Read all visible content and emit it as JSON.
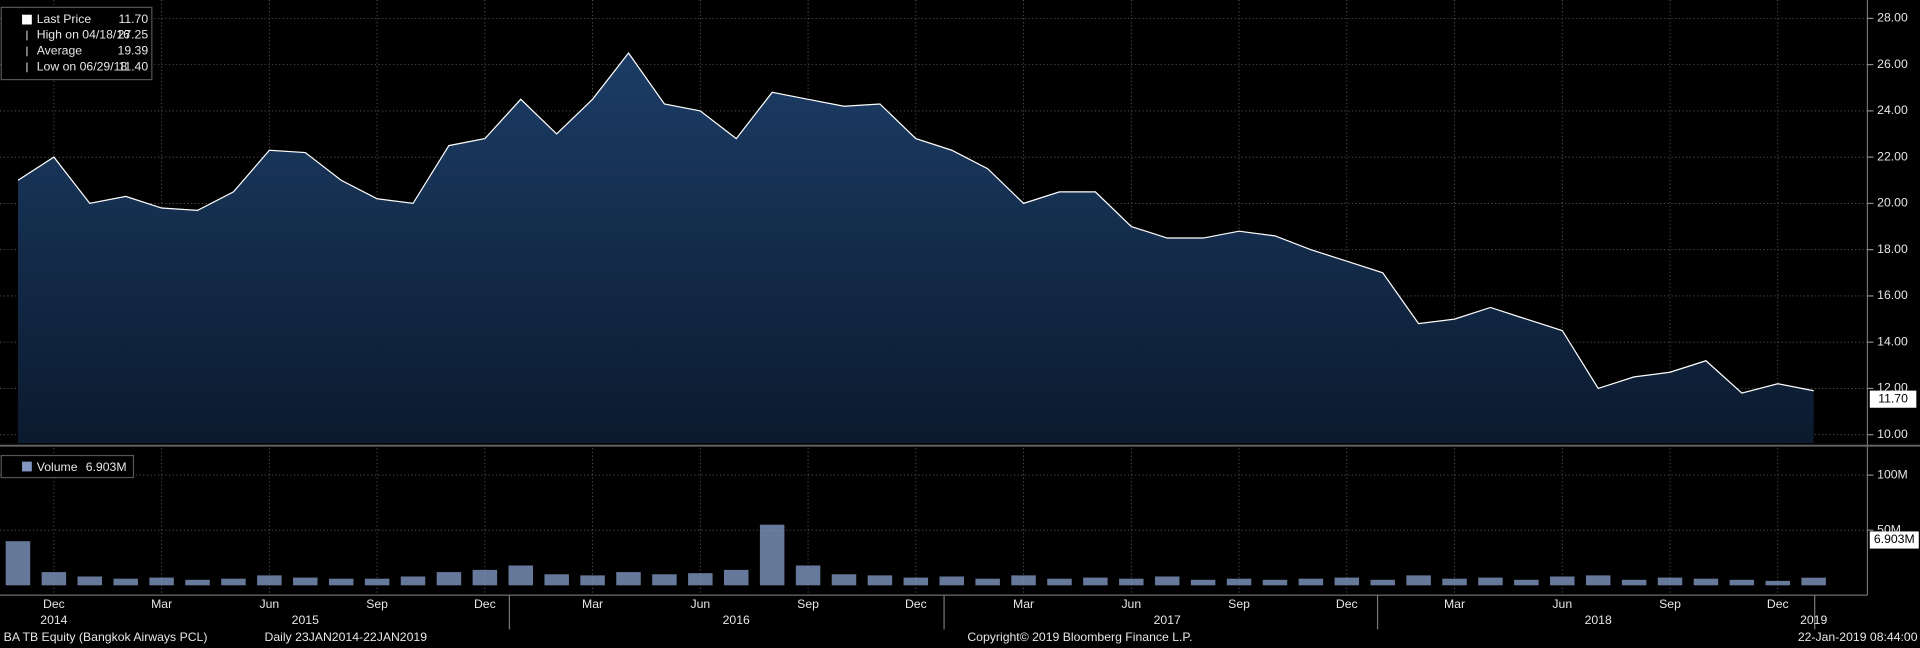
{
  "chart_data": {
    "type": "area",
    "title": "BA TB Equity (Bangkok Airways PCL)",
    "subtitle": "Daily 23JAN2014-22JAN2019",
    "copyright": "Copyright© 2019 Bloomberg Finance L.P.",
    "timestamp": "22-Jan-2019 08:44:00",
    "legend": [
      {
        "name": "Last Price",
        "value": "11.70"
      },
      {
        "name": "High on 04/18/16",
        "value": "27.25"
      },
      {
        "name": "Average",
        "value": "19.39"
      },
      {
        "name": "Low on 06/29/18",
        "value": "11.40"
      }
    ],
    "last_price_label": "11.70",
    "x": [
      "2014-11",
      "2014-12",
      "2015-01",
      "2015-02",
      "2015-03",
      "2015-04",
      "2015-05",
      "2015-06",
      "2015-07",
      "2015-08",
      "2015-09",
      "2015-10",
      "2015-11",
      "2015-12",
      "2016-01",
      "2016-02",
      "2016-03",
      "2016-04",
      "2016-05",
      "2016-06",
      "2016-07",
      "2016-08",
      "2016-09",
      "2016-10",
      "2016-11",
      "2016-12",
      "2017-01",
      "2017-02",
      "2017-03",
      "2017-04",
      "2017-05",
      "2017-06",
      "2017-07",
      "2017-08",
      "2017-09",
      "2017-10",
      "2017-11",
      "2017-12",
      "2018-01",
      "2018-02",
      "2018-03",
      "2018-04",
      "2018-05",
      "2018-06",
      "2018-07",
      "2018-08",
      "2018-09",
      "2018-10",
      "2018-11",
      "2018-12",
      "2019-01"
    ],
    "series": [
      {
        "name": "Last Price",
        "color": "#ffffff",
        "values": [
          21.0,
          22.0,
          20.0,
          20.3,
          19.8,
          19.7,
          20.5,
          22.3,
          22.2,
          21.0,
          20.2,
          20.0,
          22.5,
          22.8,
          24.5,
          23.0,
          24.5,
          26.5,
          24.3,
          24.0,
          22.8,
          24.8,
          24.5,
          24.2,
          24.3,
          22.8,
          22.3,
          21.5,
          20.0,
          20.5,
          20.5,
          19.0,
          18.5,
          18.5,
          18.8,
          18.6,
          18.0,
          17.5,
          17.0,
          14.8,
          15.0,
          15.5,
          15.0,
          14.5,
          12.0,
          12.5,
          12.7,
          13.2,
          11.8,
          12.2,
          11.9
        ]
      }
    ],
    "ylim": [
      9,
      28.5
    ],
    "yticks": [
      {
        "value": 10,
        "label": "10.00"
      },
      {
        "value": 12,
        "label": "12.00"
      },
      {
        "value": 14,
        "label": "14.00"
      },
      {
        "value": 16,
        "label": "16.00"
      },
      {
        "value": 18,
        "label": "18.00"
      },
      {
        "value": 20,
        "label": "20.00"
      },
      {
        "value": 22,
        "label": "22.00"
      },
      {
        "value": 24,
        "label": "24.00"
      },
      {
        "value": 26,
        "label": "26.00"
      },
      {
        "value": 28,
        "label": "28.00"
      }
    ],
    "volume": {
      "name": "Volume",
      "legend_value": "6.903M",
      "last_label": "6.903M",
      "color": "#8197c0",
      "values": [
        40000000,
        12000000,
        8000000,
        6000000,
        7000000,
        5000000,
        6000000,
        9000000,
        7000000,
        6000000,
        6000000,
        8000000,
        12000000,
        14000000,
        18000000,
        10000000,
        9000000,
        12000000,
        10000000,
        11000000,
        14000000,
        55000000,
        18000000,
        10000000,
        9000000,
        7000000,
        8000000,
        6000000,
        9000000,
        6000000,
        7000000,
        6000000,
        8000000,
        5000000,
        6000000,
        5000000,
        6000000,
        7000000,
        5000000,
        9000000,
        6000000,
        7000000,
        5000000,
        8000000,
        9000000,
        5000000,
        7000000,
        6000000,
        5000000,
        4000000,
        6903000
      ],
      "ylim": [
        0,
        110000000
      ],
      "yticks": [
        {
          "value": 50000000,
          "label": "50M"
        },
        {
          "value": 100000000,
          "label": "100M"
        }
      ]
    },
    "xticks": [
      {
        "value": "2014-12",
        "label": "Dec"
      },
      {
        "value": "2015-03",
        "label": "Mar"
      },
      {
        "value": "2015-06",
        "label": "Jun"
      },
      {
        "value": "2015-09",
        "label": "Sep"
      },
      {
        "value": "2015-12",
        "label": "Dec"
      },
      {
        "value": "2016-03",
        "label": "Mar"
      },
      {
        "value": "2016-06",
        "label": "Jun"
      },
      {
        "value": "2016-09",
        "label": "Sep"
      },
      {
        "value": "2016-12",
        "label": "Dec"
      },
      {
        "value": "2017-03",
        "label": "Mar"
      },
      {
        "value": "2017-06",
        "label": "Jun"
      },
      {
        "value": "2017-09",
        "label": "Sep"
      },
      {
        "value": "2017-12",
        "label": "Dec"
      },
      {
        "value": "2018-03",
        "label": "Mar"
      },
      {
        "value": "2018-06",
        "label": "Jun"
      },
      {
        "value": "2018-09",
        "label": "Sep"
      },
      {
        "value": "2018-12",
        "label": "Dec"
      }
    ],
    "year_labels": [
      {
        "value": "2014-12",
        "label": "2014"
      },
      {
        "value": "2015-07",
        "label": "2015"
      },
      {
        "value": "2016-07",
        "label": "2016"
      },
      {
        "value": "2017-07",
        "label": "2017"
      },
      {
        "value": "2018-07",
        "label": "2018"
      },
      {
        "value": "2019-01",
        "label": "2019"
      }
    ],
    "grid": true
  }
}
